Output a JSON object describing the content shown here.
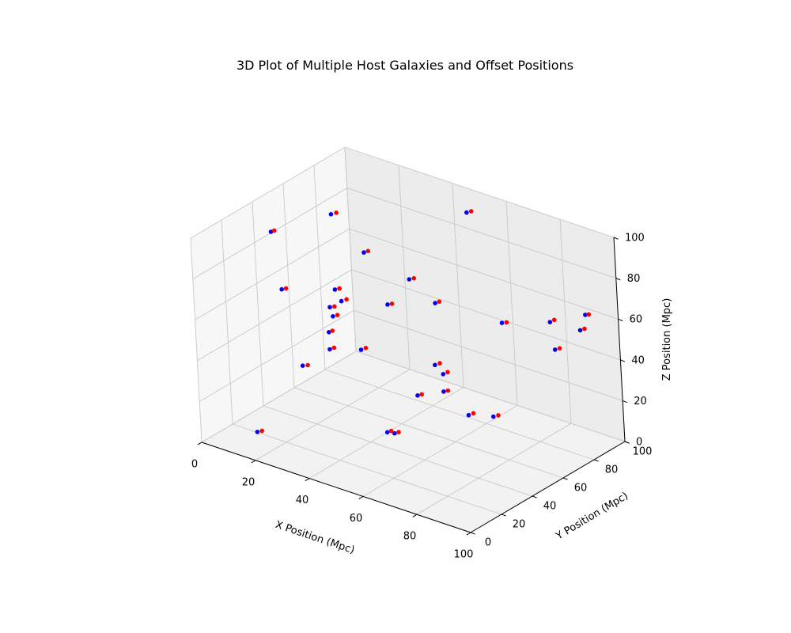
{
  "chart_data": {
    "type": "scatter",
    "projection": "3d",
    "title": "3D Plot of Multiple Host Galaxies and Offset Positions",
    "xlabel": "X Position (Mpc)",
    "ylabel": "Y Position (Mpc)",
    "zlabel": "Z Position (Mpc)",
    "xlim": [
      0,
      100
    ],
    "ylim": [
      0,
      100
    ],
    "zlim": [
      0,
      100
    ],
    "xticks": [
      "0",
      "20",
      "40",
      "60",
      "80",
      "100"
    ],
    "yticks": [
      "0",
      "20",
      "40",
      "60",
      "80",
      "100"
    ],
    "zticks": [
      "0",
      "20",
      "40",
      "60",
      "80",
      "100"
    ],
    "grid": true,
    "legend": false,
    "series": [
      {
        "color": "#0000ff",
        "points": [
          [
            11.3,
            31.9,
            93.9
          ],
          [
            17.4,
            60.1,
            92.6
          ],
          [
            79.3,
            61.1,
            66.3
          ],
          [
            83.6,
            84.2,
            58.3
          ],
          [
            87.0,
            80.8,
            47.8
          ],
          [
            94.4,
            88.7,
            64.6
          ],
          [
            62.5,
            13.3,
            26.6
          ],
          [
            60.0,
            54.2,
            27.2
          ],
          [
            69.1,
            39.4,
            46.4
          ],
          [
            10.1,
            66.9,
            28.6
          ],
          [
            84.3,
            44.3,
            30.1
          ],
          [
            46.4,
            97.3,
            89.7
          ],
          [
            16.7,
            27.8,
            69.9
          ],
          [
            15.0,
            67.7,
            45.6
          ],
          [
            38.7,
            71.7,
            65.0
          ],
          [
            13.1,
            13.6,
            4.8
          ],
          [
            67.2,
            10.0,
            29.6
          ],
          [
            27.4,
            41.3,
            55.4
          ],
          [
            64.4,
            61.8,
            14.2
          ],
          [
            63.6,
            31.7,
            36.9
          ],
          [
            24.1,
            48.9,
            63.7
          ],
          [
            23.2,
            46.6,
            55.7
          ],
          [
            13.3,
            44.0,
            23.8
          ],
          [
            60.8,
            48.3,
            43.2
          ],
          [
            51.0,
            18.7,
            59.5
          ],
          [
            53.4,
            32.9,
            76.4
          ],
          [
            25.5,
            41.3,
            38.4
          ],
          [
            97.6,
            79.7,
            62.5
          ],
          [
            50.8,
            67.1,
            60.7
          ],
          [
            11.0,
            90.1,
            57.7
          ]
        ]
      },
      {
        "color": "#ff0000",
        "points": [
          [
            12.3,
            32.4,
            94.7
          ],
          [
            18.9,
            61.0,
            93.6
          ],
          [
            80.6,
            61.9,
            66.8
          ],
          [
            84.8,
            85.0,
            59.5
          ],
          [
            88.3,
            81.6,
            48.7
          ],
          [
            95.5,
            89.1,
            65.1
          ],
          [
            63.5,
            14.1,
            27.3
          ],
          [
            61.4,
            54.6,
            28.1
          ],
          [
            70.4,
            40.1,
            47.6
          ],
          [
            11.3,
            67.2,
            29.7
          ],
          [
            85.7,
            45.1,
            31.0
          ],
          [
            47.9,
            97.7,
            90.8
          ],
          [
            18.1,
            28.2,
            70.8
          ],
          [
            16.5,
            68.5,
            46.8
          ],
          [
            40.1,
            72.4,
            65.8
          ],
          [
            14.5,
            14.2,
            5.7
          ],
          [
            68.4,
            10.6,
            30.5
          ],
          [
            28.7,
            42.0,
            56.3
          ],
          [
            65.7,
            62.7,
            15.3
          ],
          [
            64.9,
            32.2,
            37.8
          ],
          [
            25.6,
            49.3,
            64.7
          ],
          [
            24.6,
            47.2,
            56.4
          ],
          [
            14.8,
            44.7,
            24.4
          ],
          [
            62.2,
            49.1,
            44.3
          ],
          [
            52.3,
            19.5,
            60.6
          ],
          [
            54.8,
            33.4,
            77.2
          ],
          [
            26.8,
            41.9,
            39.5
          ],
          [
            98.8,
            80.5,
            63.4
          ],
          [
            52.1,
            67.6,
            61.8
          ],
          [
            12.2,
            90.8,
            58.6
          ]
        ]
      }
    ]
  }
}
